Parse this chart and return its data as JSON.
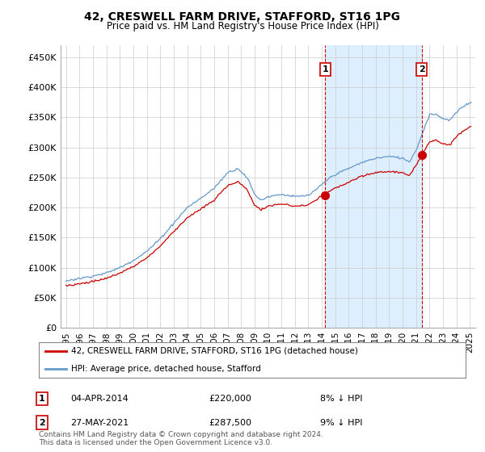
{
  "title": "42, CRESWELL FARM DRIVE, STAFFORD, ST16 1PG",
  "subtitle": "Price paid vs. HM Land Registry's House Price Index (HPI)",
  "ylabel_ticks": [
    "£0",
    "£50K",
    "£100K",
    "£150K",
    "£200K",
    "£250K",
    "£300K",
    "£350K",
    "£400K",
    "£450K"
  ],
  "ytick_values": [
    0,
    50000,
    100000,
    150000,
    200000,
    250000,
    300000,
    350000,
    400000,
    450000
  ],
  "ylim": [
    0,
    470000
  ],
  "hpi_color": "#6699cc",
  "price_color": "#cc0000",
  "shade_color": "#ddeeff",
  "dashed_color": "#cc0000",
  "legend_label_price": "42, CRESWELL FARM DRIVE, STAFFORD, ST16 1PG (detached house)",
  "legend_label_hpi": "HPI: Average price, detached house, Stafford",
  "purchase1_date": "04-APR-2014",
  "purchase1_price": 220000,
  "purchase1_pct": "8% ↓ HPI",
  "purchase1_year": 2014.25,
  "purchase2_date": "27-MAY-2021",
  "purchase2_price": 287500,
  "purchase2_pct": "9% ↓ HPI",
  "purchase2_year": 2021.42,
  "footer": "Contains HM Land Registry data © Crown copyright and database right 2024.\nThis data is licensed under the Open Government Licence v3.0.",
  "background_color": "#ffffff",
  "grid_color": "#cccccc",
  "xtick_years": [
    1995,
    1996,
    1997,
    1998,
    1999,
    2000,
    2001,
    2002,
    2003,
    2004,
    2005,
    2006,
    2007,
    2008,
    2009,
    2010,
    2011,
    2012,
    2013,
    2014,
    2015,
    2016,
    2017,
    2018,
    2019,
    2020,
    2021,
    2022,
    2023,
    2024,
    2025
  ]
}
